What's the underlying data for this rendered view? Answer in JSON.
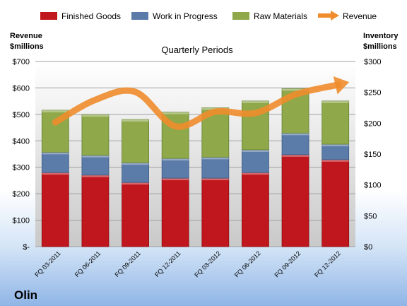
{
  "company": "Olin",
  "chart_data": {
    "type": "bar",
    "stacked": true,
    "title": "Quarterly Periods",
    "categories": [
      "FQ 03-2011",
      "FQ 06-2011",
      "FQ 09-2011",
      "FQ 12-2011",
      "FQ 03-2012",
      "FQ 06-2012",
      "FQ 09-2012",
      "FQ 12-2012"
    ],
    "series": [
      {
        "name": "Finished Goods",
        "color": "#c0161d",
        "values": [
          120,
          116,
          104,
          111,
          111,
          120,
          149,
          141
        ]
      },
      {
        "name": "Work in Progress",
        "color": "#5b7ba8",
        "values": [
          33,
          32,
          32,
          32,
          34,
          37,
          35,
          25
        ]
      },
      {
        "name": "Raw Materials",
        "color": "#8ea84a",
        "values": [
          68,
          66,
          70,
          75,
          80,
          79,
          72,
          70
        ]
      }
    ],
    "line_series": {
      "name": "Revenue",
      "color": "#f08c2c",
      "values": [
        470,
        555,
        585,
        455,
        510,
        505,
        575,
        610
      ]
    },
    "y_left": {
      "label_lines": [
        "Revenue",
        "$millions"
      ],
      "range": [
        0,
        700
      ],
      "ticks": [
        "$-",
        "$100",
        "$200",
        "$300",
        "$400",
        "$500",
        "$600",
        "$700"
      ]
    },
    "y_right": {
      "label_lines": [
        "Inventory",
        "$millions"
      ],
      "range": [
        0,
        300
      ],
      "ticks": [
        "$0",
        "$50",
        "$100",
        "$150",
        "$200",
        "$250",
        "$300"
      ]
    },
    "legend_position": "top",
    "grid": true
  }
}
